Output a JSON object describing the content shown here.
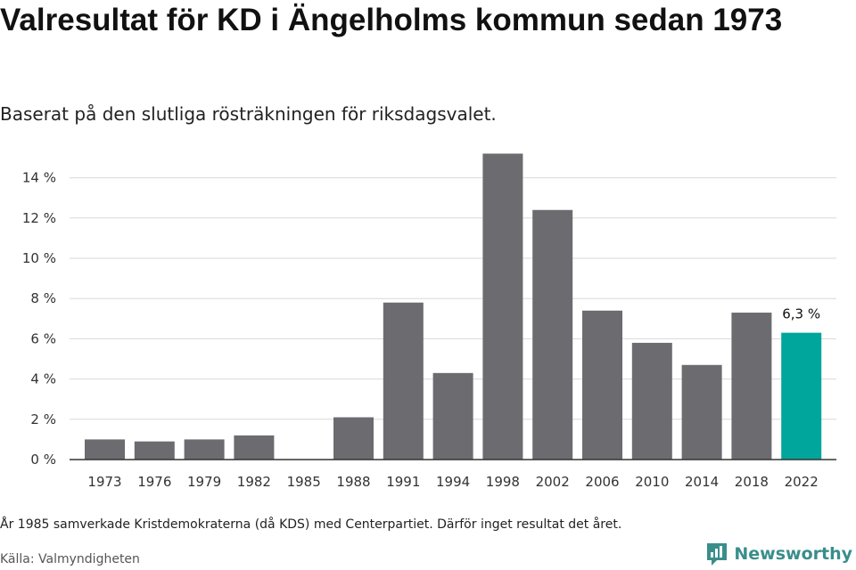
{
  "header": {
    "title": "Valresultat för KD i Ängelholms kommun sedan 1973",
    "subtitle": "Baserat på den slutliga rösträkningen för riksdagsvalet."
  },
  "footer": {
    "note": "År 1985 samverkade Kristdemokraterna (då KDS) med Centerpartiet. Därför inget resultat det året.",
    "source": "Källa: Valmyndigheten",
    "brand": "Newsworthy"
  },
  "colors": {
    "bar": "#6c6b70",
    "highlight": "#00a59b",
    "grid": "#d9d9d9",
    "axis": "#333333",
    "brand": "#3a8e8a"
  },
  "chart_data": {
    "type": "bar",
    "categories": [
      "1973",
      "1976",
      "1979",
      "1982",
      "1985",
      "1988",
      "1991",
      "1994",
      "1998",
      "2002",
      "2006",
      "2010",
      "2014",
      "2018",
      "2022"
    ],
    "values": [
      1.0,
      0.9,
      1.0,
      1.2,
      null,
      2.1,
      7.8,
      4.3,
      15.2,
      12.4,
      7.4,
      5.8,
      4.7,
      7.3,
      6.3
    ],
    "highlight_index": 14,
    "data_labels": [
      {
        "index": 14,
        "text": "6,3 %"
      }
    ],
    "y_ticks": [
      0,
      2,
      4,
      6,
      8,
      10,
      12,
      14
    ],
    "y_tick_labels": [
      "0 %",
      "2 %",
      "4 %",
      "6 %",
      "8 %",
      "10 %",
      "12 %",
      "14 %"
    ],
    "ylim": [
      0,
      15.5
    ],
    "grid": true,
    "xlabel": "",
    "ylabel": ""
  }
}
